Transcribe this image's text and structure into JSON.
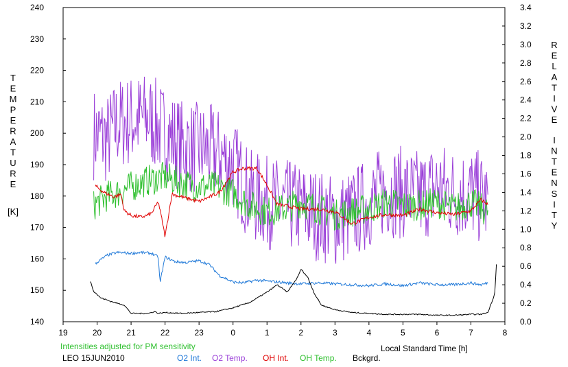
{
  "chart_data": {
    "type": "line",
    "title": "",
    "left_axis": {
      "label": "TEMPERATURE",
      "unit": "[K]",
      "ylim": [
        140,
        240
      ],
      "ticks": [
        140,
        150,
        160,
        170,
        180,
        190,
        200,
        210,
        220,
        230,
        240
      ]
    },
    "right_axis": {
      "label": "RELATIVE INTENSITY",
      "ylim": [
        0.0,
        3.4
      ],
      "ticks": [
        "0.0",
        "0.2",
        "0.4",
        "0.6",
        "0.8",
        "1.0",
        "1.2",
        "1.4",
        "1.6",
        "1.8",
        "2.0",
        "2.2",
        "2.4",
        "2.6",
        "2.8",
        "3.0",
        "3.2",
        "3.4"
      ]
    },
    "x_axis": {
      "label": "Local Standard Time [h]",
      "xlim": [
        19,
        32
      ],
      "tick_labels": [
        "19",
        "20",
        "21",
        "22",
        "23",
        "0",
        "1",
        "2",
        "3",
        "4",
        "5",
        "6",
        "7",
        "8"
      ]
    },
    "grid": false,
    "footnote": "Intensities adjusted for PM sensitivity",
    "station": "LEO 15JUN2010",
    "legend": [
      "O2 Int.",
      "O2 Temp.",
      "OH Int.",
      "OH Temp.",
      "Bckgrd."
    ],
    "colors": {
      "o2_int": "#1e78d8",
      "o2_temp": "#9b40d8",
      "oh_int": "#e00000",
      "oh_temp": "#30c030",
      "bckgrd": "#000000",
      "footnote": "#30c030"
    },
    "series": [
      {
        "key": "o2_temp",
        "name": "O2 Temp.",
        "axis": "left",
        "style": "noisy",
        "spread": 15,
        "x": [
          19.9,
          20.3,
          20.6,
          21.0,
          21.5,
          22.0,
          22.5,
          23.0,
          23.5,
          24.0,
          24.5,
          25.0,
          25.5,
          26.0,
          26.5,
          27.0,
          27.5,
          28.0,
          28.5,
          29.0,
          29.5,
          30.0,
          30.5,
          31.0,
          31.5
        ],
        "y": [
          200,
          198,
          203,
          204,
          205,
          200,
          196,
          195,
          194,
          190,
          180,
          178,
          177,
          176,
          174,
          172,
          174,
          178,
          182,
          181,
          180,
          183,
          181,
          181,
          178
        ]
      },
      {
        "key": "oh_temp",
        "name": "OH Temp.",
        "axis": "left",
        "style": "noisy",
        "spread": 5,
        "x": [
          19.9,
          20.3,
          20.6,
          21.0,
          21.5,
          22.0,
          22.5,
          23.0,
          23.5,
          24.0,
          24.5,
          25.0,
          25.5,
          26.0,
          26.5,
          27.0,
          27.5,
          28.0,
          28.5,
          29.0,
          29.5,
          30.0,
          30.5,
          31.0,
          31.5
        ],
        "y": [
          177,
          180,
          181,
          183,
          185,
          186,
          184,
          183,
          183,
          181,
          177,
          175,
          176,
          178,
          176,
          174,
          175,
          176,
          178,
          177,
          177,
          178,
          176,
          178,
          175
        ]
      },
      {
        "key": "oh_int",
        "name": "OH Int.",
        "axis": "right",
        "style": "smooth",
        "spread": 0.02,
        "x": [
          19.95,
          20.2,
          20.5,
          20.7,
          20.8,
          21.0,
          21.3,
          21.6,
          21.8,
          21.9,
          22.0,
          22.2,
          22.5,
          23.0,
          23.3,
          23.6,
          24.0,
          24.3,
          24.7,
          25.0,
          25.3,
          25.6,
          26.0,
          26.5,
          27.0,
          27.5,
          28.0,
          28.5,
          29.0,
          29.5,
          30.0,
          30.5,
          31.0,
          31.3,
          31.5
        ],
        "y": [
          1.47,
          1.4,
          1.35,
          1.38,
          1.2,
          1.15,
          1.13,
          1.17,
          1.3,
          1.12,
          0.92,
          1.38,
          1.35,
          1.3,
          1.35,
          1.4,
          1.62,
          1.66,
          1.66,
          1.48,
          1.27,
          1.25,
          1.22,
          1.22,
          1.19,
          1.06,
          1.13,
          1.16,
          1.15,
          1.22,
          1.18,
          1.16,
          1.2,
          1.32,
          1.27
        ]
      },
      {
        "key": "o2_int",
        "name": "O2 Int.",
        "axis": "right",
        "style": "smooth",
        "spread": 0.015,
        "x": [
          19.95,
          20.3,
          20.6,
          21.0,
          21.3,
          21.6,
          21.8,
          21.85,
          22.0,
          22.3,
          22.6,
          23.0,
          23.3,
          23.6,
          24.0,
          24.3,
          24.7,
          25.0,
          25.3,
          25.6,
          26.0,
          26.5,
          27.0,
          27.5,
          28.0,
          28.5,
          29.0,
          29.5,
          30.0,
          30.5,
          31.0,
          31.3,
          31.5
        ],
        "y": [
          0.63,
          0.72,
          0.75,
          0.74,
          0.75,
          0.74,
          0.7,
          0.42,
          0.7,
          0.65,
          0.64,
          0.66,
          0.62,
          0.5,
          0.43,
          0.42,
          0.45,
          0.44,
          0.43,
          0.42,
          0.41,
          0.42,
          0.41,
          0.4,
          0.39,
          0.41,
          0.39,
          0.42,
          0.4,
          0.4,
          0.42,
          0.4,
          0.42
        ]
      },
      {
        "key": "bckgrd",
        "name": "Bckgrd.",
        "axis": "right",
        "style": "smooth",
        "spread": 0.006,
        "x": [
          19.8,
          19.9,
          20.1,
          20.4,
          20.6,
          20.8,
          21.0,
          21.5,
          21.7,
          21.8,
          22.0,
          22.5,
          23.0,
          23.5,
          24.0,
          24.5,
          25.0,
          25.3,
          25.6,
          25.9,
          26.0,
          26.2,
          26.4,
          26.6,
          27.0,
          27.5,
          28.0,
          28.5,
          29.0,
          29.5,
          30.0,
          30.5,
          31.0,
          31.3,
          31.5,
          31.7,
          31.75
        ],
        "y": [
          0.44,
          0.33,
          0.26,
          0.22,
          0.2,
          0.18,
          0.09,
          0.09,
          0.11,
          0.09,
          0.1,
          0.09,
          0.1,
          0.11,
          0.15,
          0.21,
          0.32,
          0.4,
          0.32,
          0.48,
          0.57,
          0.48,
          0.3,
          0.18,
          0.13,
          0.1,
          0.09,
          0.08,
          0.08,
          0.08,
          0.07,
          0.07,
          0.08,
          0.08,
          0.1,
          0.3,
          0.62
        ]
      }
    ]
  }
}
